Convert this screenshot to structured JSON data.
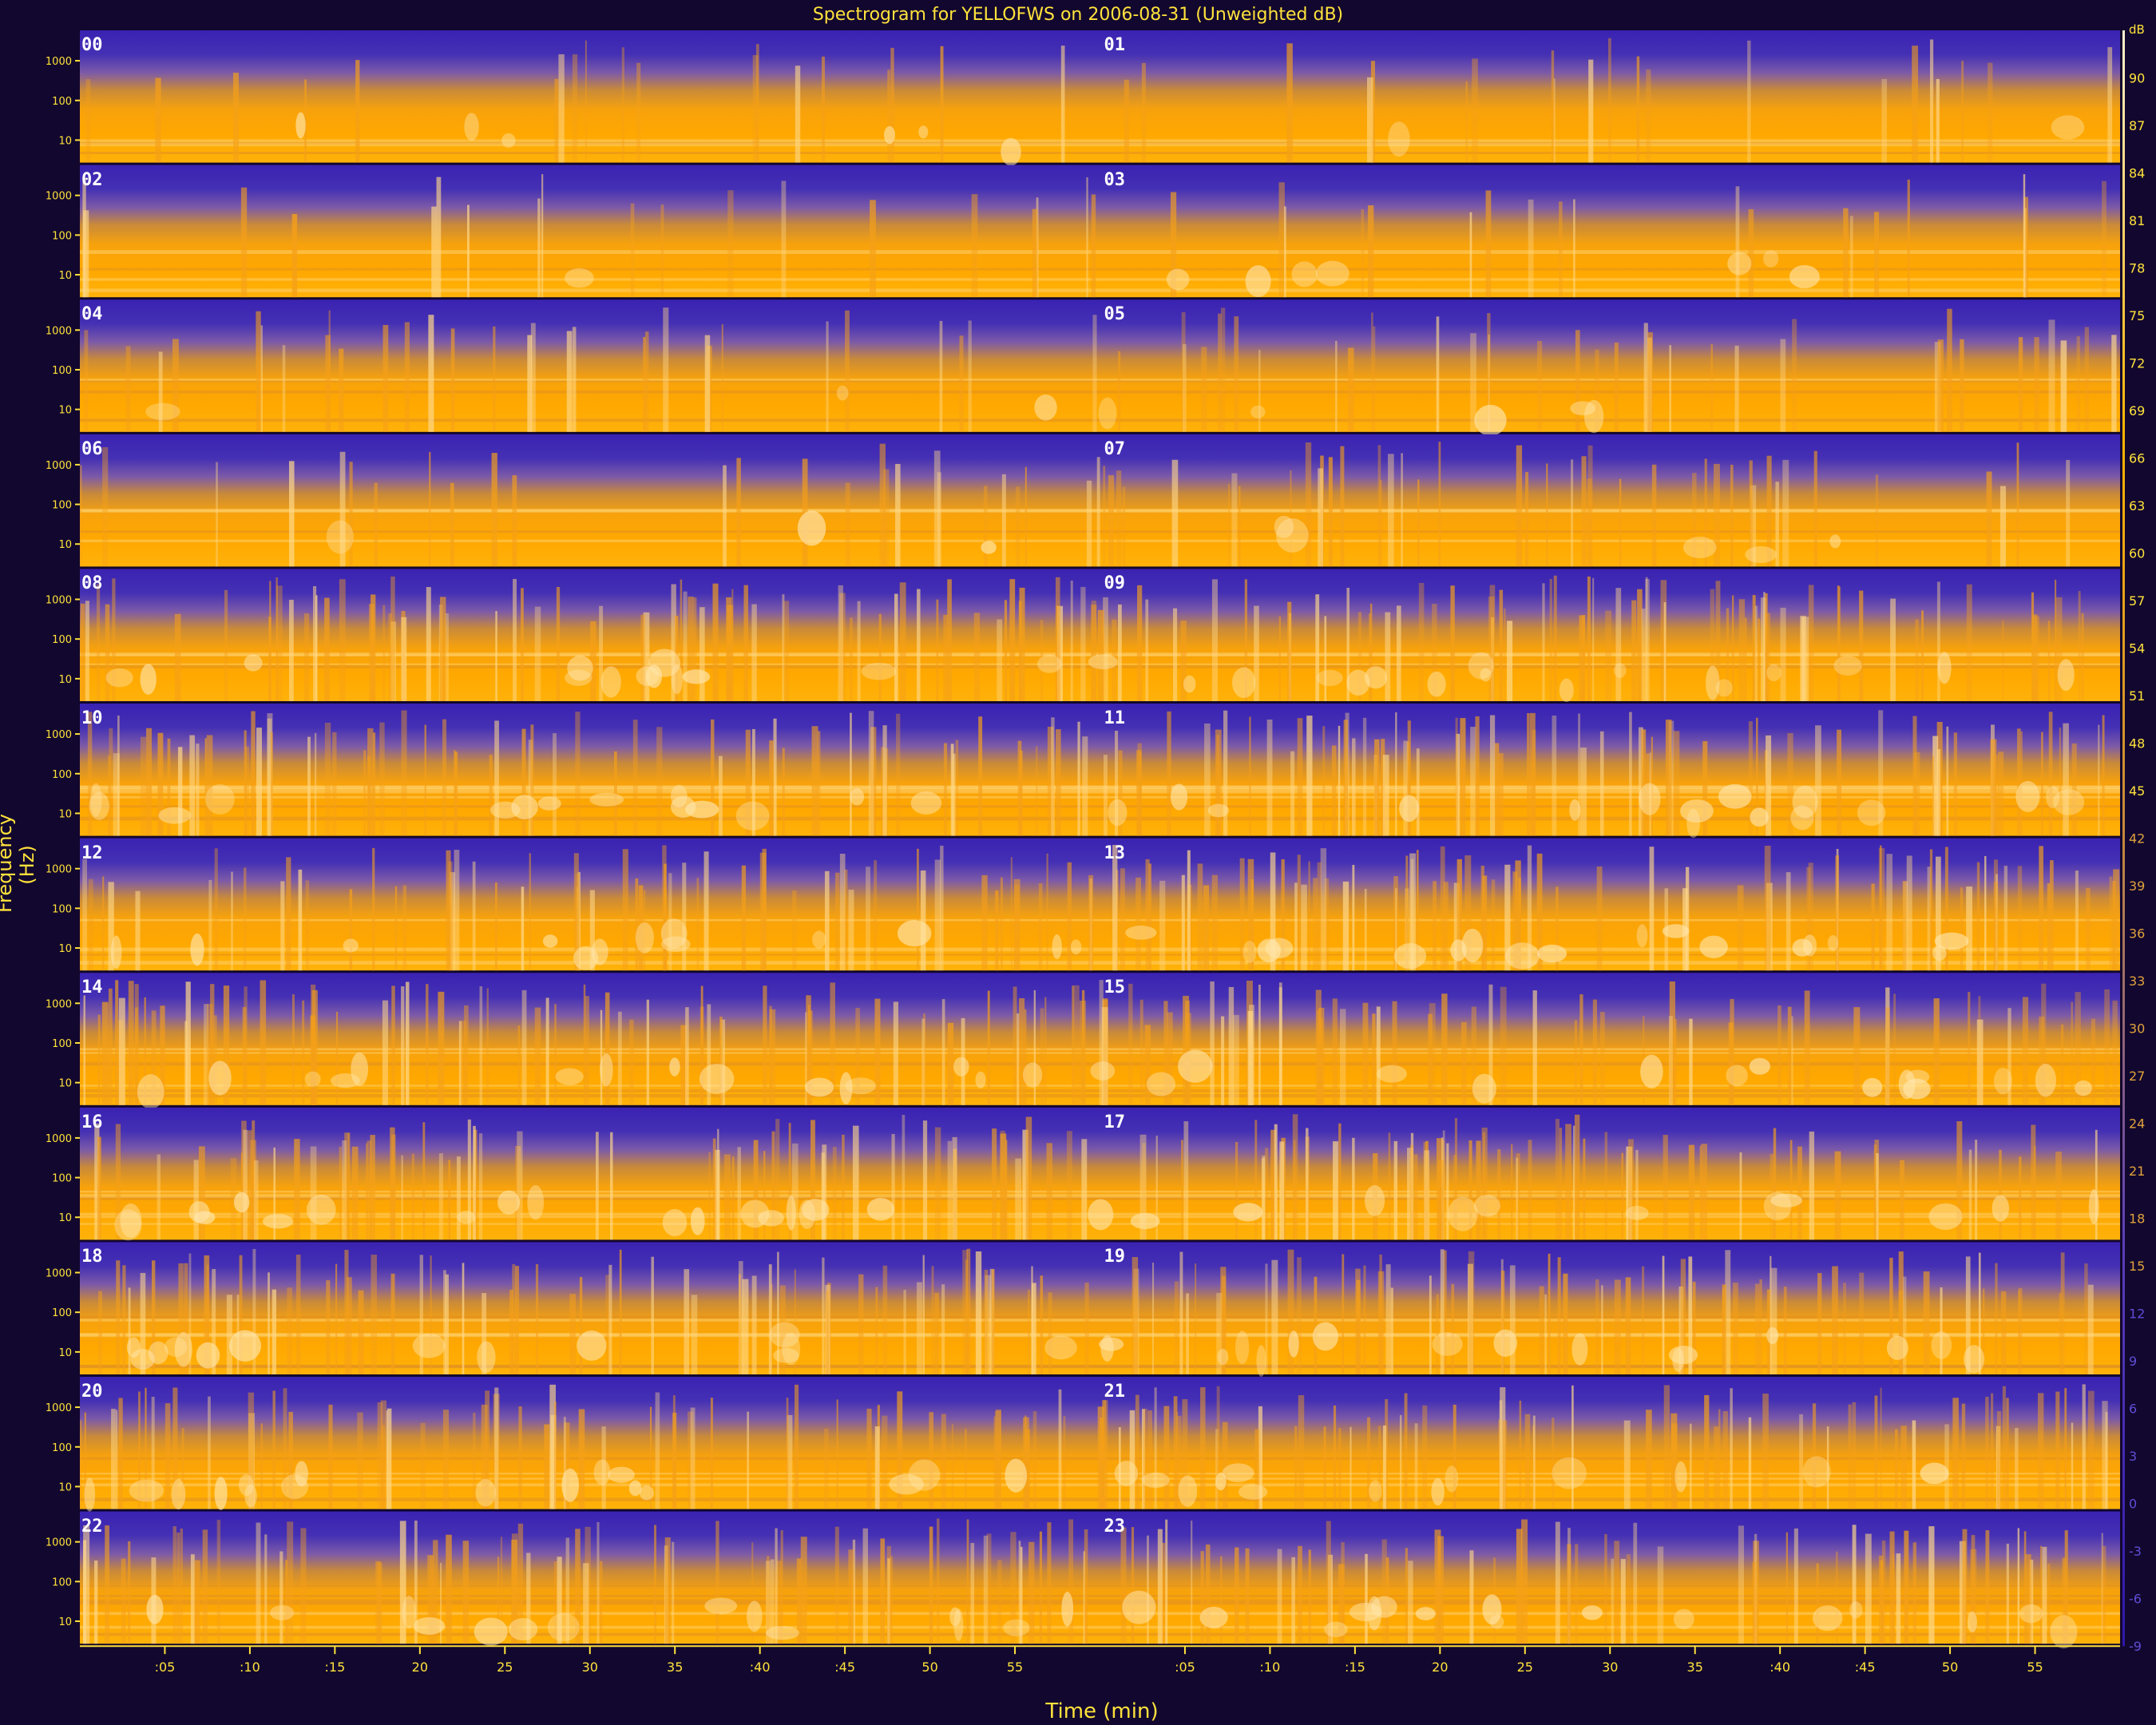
{
  "title": "Spectrogram for YELLOFWS on 2006-08-31 (Unweighted dB)",
  "chart_data": {
    "type": "heatmap",
    "title": "Spectrogram for YELLOFWS on 2006-08-31 (Unweighted dB)",
    "xlabel": "Time (min)",
    "ylabel": "Frequency (Hz)",
    "rows": 12,
    "hours": [
      "00",
      "01",
      "02",
      "03",
      "04",
      "05",
      "06",
      "07",
      "08",
      "09",
      "10",
      "11",
      "12",
      "13",
      "14",
      "15",
      "16",
      "17",
      "18",
      "19",
      "20",
      "21",
      "22",
      "23"
    ],
    "x_tick_labels": [
      ":05",
      ":10",
      ":15",
      "20",
      "25",
      "30",
      "35",
      ":40",
      ":45",
      "50",
      "55"
    ],
    "x_tick_minutes": [
      5,
      10,
      15,
      20,
      25,
      30,
      35,
      40,
      45,
      50,
      55
    ],
    "xlim": [
      0,
      60
    ],
    "freq_tick_labels": [
      "1000",
      "100",
      "10"
    ],
    "colorbar": {
      "unit_label": "dB",
      "range": [
        -9,
        93
      ],
      "ticks": [
        90,
        87,
        84,
        81,
        78,
        75,
        72,
        69,
        66,
        63,
        60,
        57,
        54,
        51,
        48,
        45,
        42,
        39,
        36,
        33,
        30,
        27,
        24,
        21,
        18,
        15,
        12,
        9,
        6,
        3,
        0,
        -3,
        -6,
        -9
      ],
      "tick_labels": [
        "90",
        "87",
        "84",
        "81",
        "78",
        "75",
        "72",
        "69",
        "66",
        "63",
        "60",
        "57",
        "54",
        "51",
        "48",
        "45",
        "42",
        "39",
        "36",
        "33",
        "30",
        "27",
        "24",
        "21",
        "18",
        "15",
        "12",
        "9",
        "6",
        "3",
        "0",
        "-3",
        "-6",
        "-9"
      ],
      "colors": [
        "#2e18aa",
        "#5a3fb8",
        "#8c66a0",
        "#c4883c",
        "#ffa200",
        "#ffb400",
        "#ffd27a",
        "#fff2d0"
      ]
    },
    "colors": {
      "low": "#3b22b0",
      "mid": "#c08a4a",
      "high": "#ffa800",
      "peak": "#ffe9b8",
      "axis_text": "#ffe23c",
      "background": "#12072e"
    }
  }
}
